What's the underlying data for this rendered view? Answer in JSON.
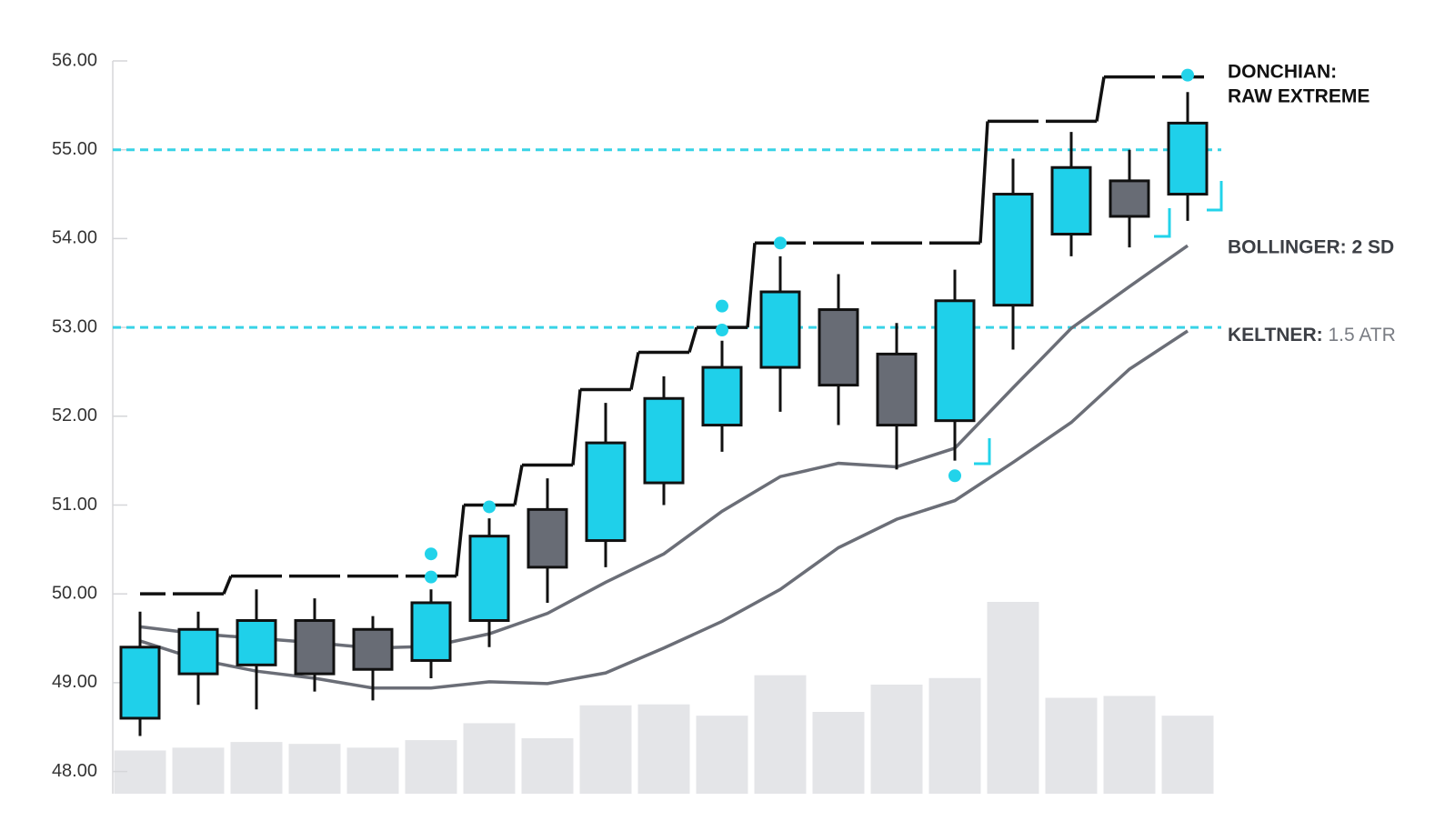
{
  "chart_data": {
    "type": "candlestick",
    "open": [
      48.6,
      49.1,
      49.2,
      49.7,
      49.6,
      49.25,
      49.7,
      50.95,
      50.6,
      51.25,
      51.9,
      52.55,
      53.2,
      52.7,
      51.95,
      53.25,
      54.05,
      54.65,
      54.5
    ],
    "high": [
      49.8,
      49.8,
      50.05,
      49.95,
      49.75,
      50.05,
      50.85,
      51.3,
      52.15,
      52.45,
      52.85,
      53.8,
      53.6,
      53.05,
      53.65,
      54.9,
      55.2,
      55.0,
      55.65
    ],
    "low": [
      48.4,
      48.75,
      48.7,
      48.9,
      48.8,
      49.05,
      49.4,
      49.9,
      50.3,
      51.0,
      51.6,
      52.05,
      51.9,
      51.4,
      51.5,
      52.75,
      53.8,
      53.9,
      54.2
    ],
    "close": [
      49.4,
      49.6,
      49.7,
      49.1,
      49.15,
      49.9,
      50.65,
      50.3,
      51.7,
      52.2,
      52.55,
      53.4,
      52.35,
      51.9,
      53.3,
      54.5,
      54.8,
      54.25,
      55.3
    ],
    "up_color": "#1fd0ea",
    "down_color": "#686c75",
    "volume": {
      "values": [
        46,
        49,
        55,
        53,
        49,
        57,
        75,
        59,
        94,
        95,
        83,
        126,
        87,
        116,
        123,
        204,
        102,
        104,
        83
      ],
      "color": "#e4e5e8"
    },
    "series": [
      {
        "name": "DONCHIAN:",
        "name_line2": "RAW EXTREME",
        "color": "#111111",
        "values": [
          50.0,
          50.0,
          50.2,
          50.2,
          50.2,
          50.2,
          51.0,
          51.45,
          52.3,
          52.72,
          53.0,
          53.95,
          53.95,
          53.95,
          53.95,
          55.32,
          55.32,
          55.82,
          55.82
        ]
      },
      {
        "name": "BOLLINGER: 2 SD",
        "color": "#6b6e77",
        "values": [
          49.63,
          49.55,
          49.5,
          49.45,
          49.39,
          49.41,
          49.55,
          49.78,
          50.13,
          50.45,
          50.93,
          51.32,
          51.47,
          51.43,
          51.64,
          52.32,
          52.99,
          53.46,
          53.92
        ]
      },
      {
        "name": "KELTNER:",
        "name_detail": "1.5 ATR",
        "color": "#6b6e77",
        "values": [
          49.47,
          49.26,
          49.13,
          49.05,
          48.94,
          48.94,
          49.01,
          48.99,
          49.11,
          49.39,
          49.69,
          50.05,
          50.52,
          50.84,
          51.05,
          51.48,
          51.93,
          52.53,
          52.96
        ]
      }
    ],
    "reference_lines": {
      "values": [
        55.0,
        53.0
      ],
      "color": "#38d3e6"
    },
    "markers": {
      "x": [
        5,
        5,
        6,
        10,
        10,
        11,
        14,
        18
      ],
      "values": [
        50.45,
        50.19,
        50.98,
        53.24,
        52.97,
        53.95,
        51.33,
        55.84
      ],
      "color": "#22d3ea"
    },
    "ylim": [
      47.75,
      56
    ],
    "yticks": [
      {
        "value": 48,
        "label": "48.00"
      },
      {
        "value": 49,
        "label": "49.00"
      },
      {
        "value": 50,
        "label": "50.00"
      },
      {
        "value": 51,
        "label": "51.00"
      },
      {
        "value": 52,
        "label": "52.00"
      },
      {
        "value": 53,
        "label": "53.00"
      },
      {
        "value": 54,
        "label": "54.00"
      },
      {
        "value": 55,
        "label": "55.00"
      },
      {
        "value": 56,
        "label": "56.00"
      }
    ]
  }
}
